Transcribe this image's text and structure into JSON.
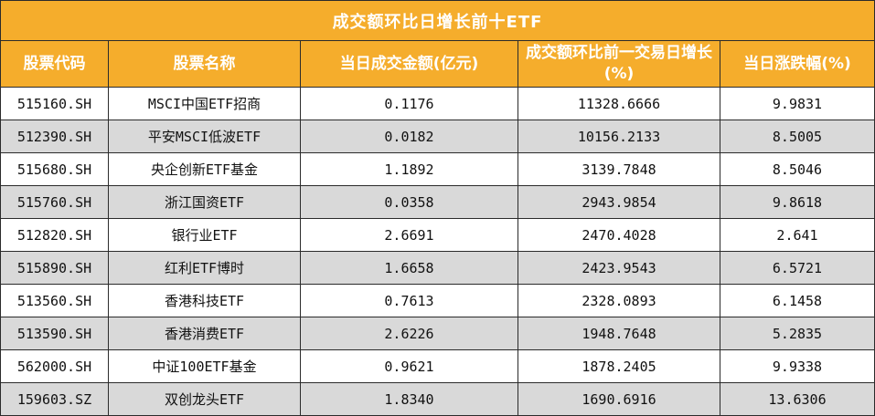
{
  "table": {
    "title": "成交额环比日增长前十ETF",
    "headers": [
      "股票代码",
      "股票名称",
      "当日成交金额(亿元)",
      "成交额环比前一交易日增长(%)",
      "当日涨跌幅(%)"
    ],
    "rows": [
      {
        "code": "515160.SH",
        "name": "MSCI中国ETF招商",
        "amount": "0.1176",
        "growth": "11328.6666",
        "change": "9.9831"
      },
      {
        "code": "512390.SH",
        "name": "平安MSCI低波ETF",
        "amount": "0.0182",
        "growth": "10156.2133",
        "change": "8.5005"
      },
      {
        "code": "515680.SH",
        "name": "央企创新ETF基金",
        "amount": "1.1892",
        "growth": "3139.7848",
        "change": "8.5046"
      },
      {
        "code": "515760.SH",
        "name": "浙江国资ETF",
        "amount": "0.0358",
        "growth": "2943.9854",
        "change": "9.8618"
      },
      {
        "code": "512820.SH",
        "name": "银行业ETF",
        "amount": "2.6691",
        "growth": "2470.4028",
        "change": "2.641"
      },
      {
        "code": "515890.SH",
        "name": "红利ETF博时",
        "amount": "1.6658",
        "growth": "2423.9543",
        "change": "6.5721"
      },
      {
        "code": "513560.SH",
        "name": "香港科技ETF",
        "amount": "0.7613",
        "growth": "2328.0893",
        "change": "6.1458"
      },
      {
        "code": "513590.SH",
        "name": "香港消费ETF",
        "amount": "2.6226",
        "growth": "1948.7648",
        "change": "5.2835"
      },
      {
        "code": "562000.SH",
        "name": "中证100ETF基金",
        "amount": "0.9621",
        "growth": "1878.2405",
        "change": "9.9338"
      },
      {
        "code": "159603.SZ",
        "name": "双创龙头ETF",
        "amount": "1.8340",
        "growth": "1690.6916",
        "change": "13.6306"
      }
    ]
  },
  "colors": {
    "header_bg": "#f5ad2c",
    "header_text": "#ffffff",
    "stripe_bg": "#d9d9d9",
    "row_bg": "#ffffff",
    "border": "#2b2b2b"
  }
}
